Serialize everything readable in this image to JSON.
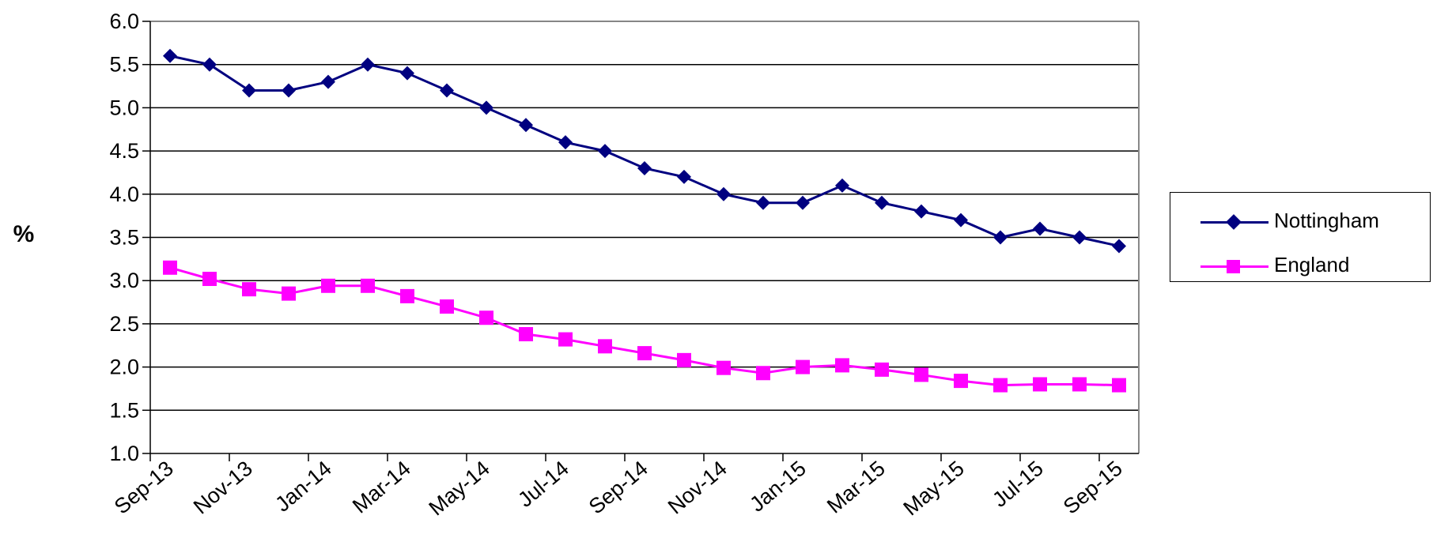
{
  "chart_data": {
    "type": "line",
    "title": "",
    "xlabel": "",
    "ylabel": "%",
    "ylim": [
      1.0,
      6.0
    ],
    "yticks": [
      "1.0",
      "1.5",
      "2.0",
      "2.5",
      "3.0",
      "3.5",
      "4.0",
      "4.5",
      "5.0",
      "5.5",
      "6.0"
    ],
    "x": [
      "Sep-13",
      "Oct-13",
      "Nov-13",
      "Dec-13",
      "Jan-14",
      "Feb-14",
      "Mar-14",
      "Apr-14",
      "May-14",
      "Jun-14",
      "Jul-14",
      "Aug-14",
      "Sep-14",
      "Oct-14",
      "Nov-14",
      "Dec-14",
      "Jan-15",
      "Feb-15",
      "Mar-15",
      "Apr-15",
      "May-15",
      "Jun-15",
      "Jul-15",
      "Aug-15",
      "Sep-15"
    ],
    "xtick_labels": [
      "Sep-13",
      "Nov-13",
      "Jan-14",
      "Mar-14",
      "May-14",
      "Jul-14",
      "Sep-14",
      "Nov-14",
      "Jan-15",
      "Mar-15",
      "May-15",
      "Jul-15",
      "Sep-15"
    ],
    "grid": true,
    "legend_position": "right",
    "series": [
      {
        "name": "Nottingham",
        "color": "#000080",
        "marker": "diamond",
        "values": [
          5.6,
          5.5,
          5.2,
          5.2,
          5.3,
          5.5,
          5.4,
          5.2,
          5.0,
          4.8,
          4.6,
          4.5,
          4.3,
          4.2,
          4.0,
          3.9,
          3.9,
          4.1,
          3.9,
          3.8,
          3.7,
          3.5,
          3.6,
          3.5,
          3.4
        ]
      },
      {
        "name": "England",
        "color": "#ff00ff",
        "marker": "square",
        "values": [
          3.15,
          3.02,
          2.9,
          2.85,
          2.94,
          2.94,
          2.82,
          2.7,
          2.57,
          2.38,
          2.32,
          2.24,
          2.16,
          2.08,
          1.99,
          1.93,
          2.0,
          2.02,
          1.97,
          1.91,
          1.84,
          1.79,
          1.8,
          1.8,
          1.79
        ]
      }
    ]
  }
}
